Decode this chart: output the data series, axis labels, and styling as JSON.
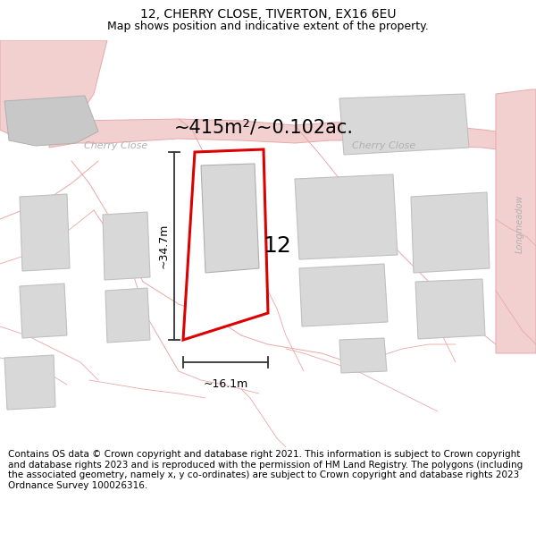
{
  "title": "12, CHERRY CLOSE, TIVERTON, EX16 6EU",
  "subtitle": "Map shows position and indicative extent of the property.",
  "area_label": "~415m²/~0.102ac.",
  "number_label": "12",
  "dim_height": "~34.7m",
  "dim_width": "~16.1m",
  "street_label1": "Cherry Close",
  "street_label2": "Cherry Close",
  "street_label_right": "Longmeadow",
  "footer": "Contains OS data © Crown copyright and database right 2021. This information is subject to Crown copyright and database rights 2023 and is reproduced with the permission of HM Land Registry. The polygons (including the associated geometry, namely x, y co-ordinates) are subject to Crown copyright and database rights 2023 Ordnance Survey 100026316.",
  "bg_color": "#ffffff",
  "map_bg": "#f7f7f7",
  "road_color": "#f2d0d0",
  "road_outline": "#e8a8a8",
  "building_fill": "#d8d8d8",
  "building_outline": "#c0c0c0",
  "highlight_color": "#dd0000",
  "highlight_fill": "#ffffff",
  "dim_color": "#333333",
  "street_text_color": "#b0b0b0",
  "title_fontsize": 10,
  "subtitle_fontsize": 9,
  "area_fontsize": 15,
  "number_fontsize": 18,
  "footer_fontsize": 7.5
}
